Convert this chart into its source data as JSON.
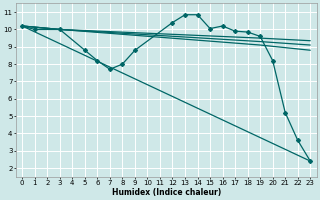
{
  "xlabel": "Humidex (Indice chaleur)",
  "ylabel": "",
  "background_color": "#cfe8e8",
  "grid_color": "#ffffff",
  "line_color": "#006666",
  "xlim": [
    -0.5,
    23.5
  ],
  "ylim": [
    1.5,
    11.5
  ],
  "xticks": [
    0,
    1,
    2,
    3,
    4,
    5,
    6,
    7,
    8,
    9,
    10,
    11,
    12,
    13,
    14,
    15,
    16,
    17,
    18,
    19,
    20,
    21,
    22,
    23
  ],
  "yticks": [
    2,
    3,
    4,
    5,
    6,
    7,
    8,
    9,
    10,
    11
  ],
  "series": [
    {
      "x": [
        0,
        1,
        3,
        5,
        6,
        7,
        8,
        9,
        12,
        13,
        14,
        15,
        16,
        17,
        18,
        19,
        20,
        21,
        22,
        23
      ],
      "y": [
        10.2,
        10.0,
        10.0,
        8.8,
        8.2,
        7.7,
        8.0,
        8.8,
        10.4,
        10.85,
        10.85,
        10.05,
        10.2,
        9.9,
        9.85,
        9.6,
        8.2,
        5.2,
        3.6,
        2.4
      ],
      "marker": "D",
      "markersize": 2.0,
      "linewidth": 0.9
    },
    {
      "x": [
        0,
        3,
        19,
        23
      ],
      "y": [
        10.2,
        10.0,
        9.1,
        8.8
      ],
      "marker": null,
      "markersize": 0,
      "linewidth": 0.9
    },
    {
      "x": [
        0,
        3,
        19,
        23
      ],
      "y": [
        10.2,
        10.0,
        9.3,
        9.1
      ],
      "marker": null,
      "markersize": 0,
      "linewidth": 0.9
    },
    {
      "x": [
        0,
        3,
        19,
        23
      ],
      "y": [
        10.2,
        10.0,
        9.5,
        9.35
      ],
      "marker": null,
      "markersize": 0,
      "linewidth": 0.9
    },
    {
      "x": [
        0,
        23
      ],
      "y": [
        10.2,
        2.4
      ],
      "marker": null,
      "markersize": 0,
      "linewidth": 0.9
    }
  ]
}
